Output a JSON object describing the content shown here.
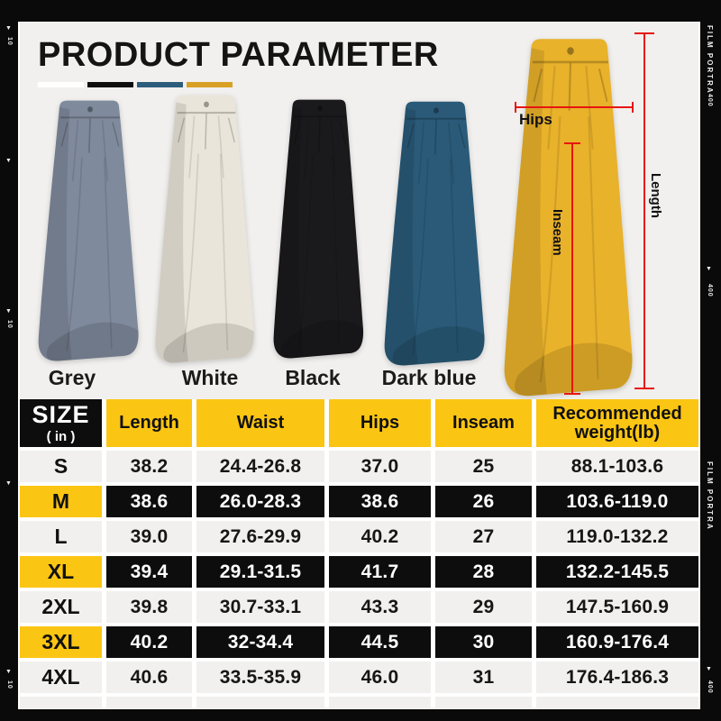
{
  "page": {
    "title": "PRODUCT PARAMETER",
    "background": "#f1f0ee",
    "frame_color": "#0a0a0a",
    "title_bars": [
      "#ffffff",
      "#0e0e0e",
      "#2d5d7c",
      "#d8a125"
    ]
  },
  "film": {
    "brand": "FILM PORTRA",
    "right_number": "400",
    "left_number": "10"
  },
  "products": [
    {
      "label": "Grey",
      "color": "#7f8a9c"
    },
    {
      "label": "White",
      "color": "#eae5da"
    },
    {
      "label": "Black",
      "color": "#1a1a1d"
    },
    {
      "label": "Dark blue",
      "color": "#2a5a78"
    }
  ],
  "measurement_figure": {
    "color": "#e9b22b",
    "line_color": "#e8150f",
    "labels": {
      "hips": "Hips",
      "length": "Length",
      "inseam": "Inseam"
    }
  },
  "table": {
    "accent_color": "#fbc513",
    "dark_color": "#0d0d0d",
    "header": {
      "size_title": "SIZE",
      "size_unit": "( in )",
      "columns": [
        "Length",
        "Waist",
        "Hips",
        "Inseam",
        "Recommended weight(lb)"
      ]
    },
    "rows": [
      {
        "size": "S",
        "highlight": false,
        "values": [
          "38.2",
          "24.4-26.8",
          "37.0",
          "25",
          "88.1-103.6"
        ]
      },
      {
        "size": "M",
        "highlight": true,
        "values": [
          "38.6",
          "26.0-28.3",
          "38.6",
          "26",
          "103.6-119.0"
        ]
      },
      {
        "size": "L",
        "highlight": false,
        "values": [
          "39.0",
          "27.6-29.9",
          "40.2",
          "27",
          "119.0-132.2"
        ]
      },
      {
        "size": "XL",
        "highlight": true,
        "values": [
          "39.4",
          "29.1-31.5",
          "41.7",
          "28",
          "132.2-145.5"
        ]
      },
      {
        "size": "2XL",
        "highlight": false,
        "values": [
          "39.8",
          "30.7-33.1",
          "43.3",
          "29",
          "147.5-160.9"
        ]
      },
      {
        "size": "3XL",
        "highlight": true,
        "values": [
          "40.2",
          "32-34.4",
          "44.5",
          "30",
          "160.9-176.4"
        ]
      },
      {
        "size": "4XL",
        "highlight": false,
        "values": [
          "40.6",
          "33.5-35.9",
          "46.0",
          "31",
          "176.4-186.3"
        ]
      }
    ]
  }
}
